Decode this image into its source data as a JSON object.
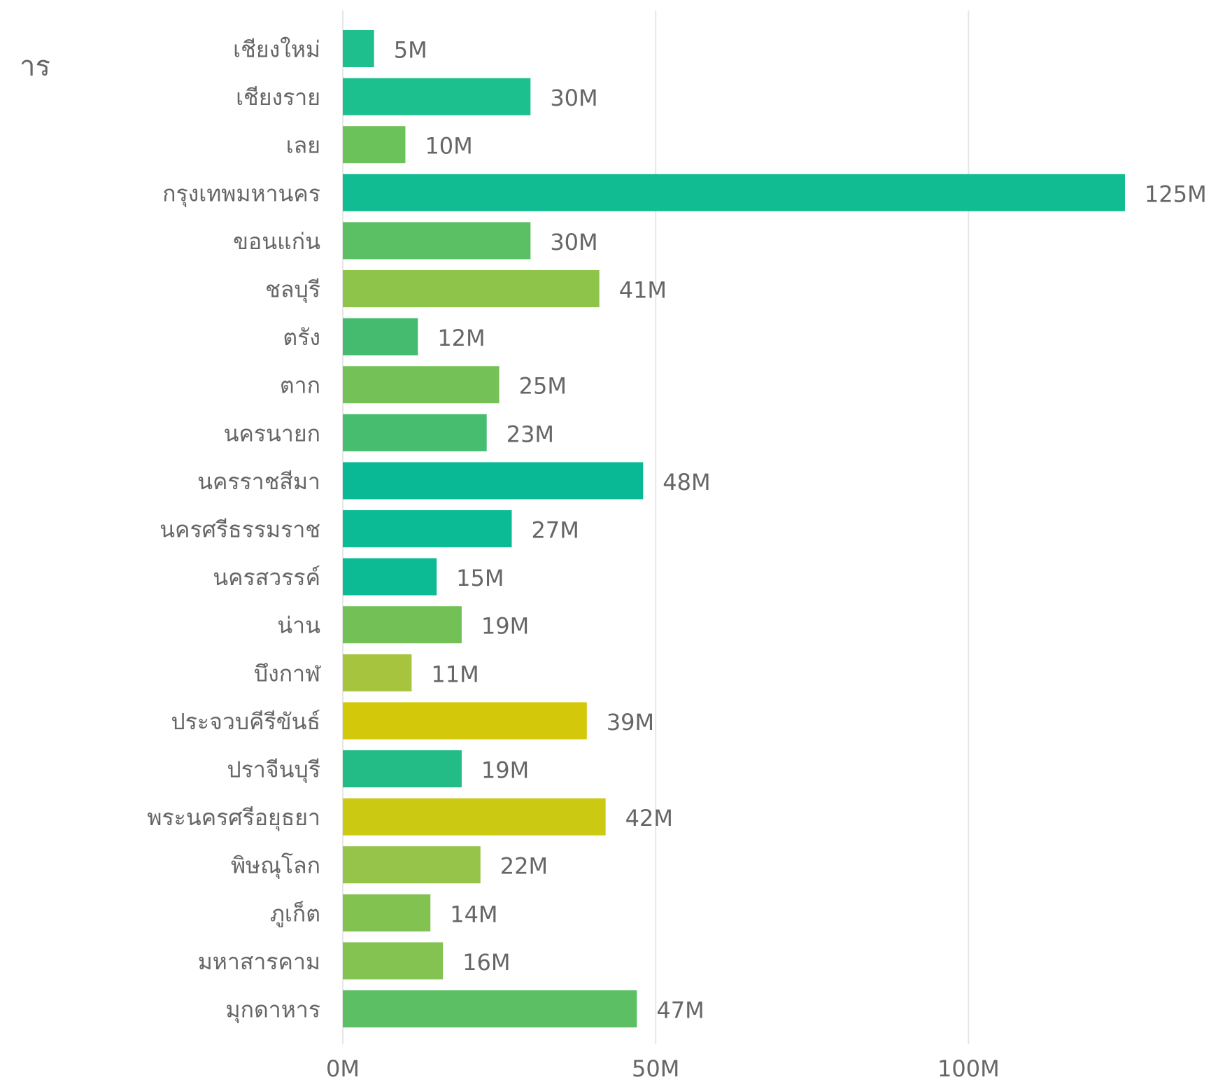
{
  "side_label": "าร",
  "chart_data": {
    "type": "bar",
    "orientation": "horizontal",
    "title": "",
    "xlabel": "",
    "ylabel": "",
    "xlim": [
      0,
      125
    ],
    "x_ticks": [
      0,
      50,
      100
    ],
    "x_tick_labels": [
      "0M",
      "50M",
      "100M"
    ],
    "grid": true,
    "categories": [
      "เชียงใหม่",
      "เชียงราย",
      "เลย",
      "กรุงเทพมหานคร",
      "ขอนแก่น",
      "ชลบุรี",
      "ตรัง",
      "ตาก",
      "นครนายก",
      "นครราชสีมา",
      "นครศรีธรรมราช",
      "นครสวรรค์",
      "น่าน",
      "บึงกาฬ",
      "ประจวบคีรีขันธ์",
      "ปราจีนบุรี",
      "พระนครศรีอยุธยา",
      "พิษณุโลก",
      "ภูเก็ต",
      "มหาสารคาม",
      "มุกดาหาร"
    ],
    "values": [
      5,
      30,
      10,
      125,
      30,
      41,
      12,
      25,
      23,
      48,
      27,
      15,
      19,
      11,
      39,
      19,
      42,
      22,
      14,
      16,
      47
    ],
    "value_labels": [
      "5M",
      "30M",
      "10M",
      "125M",
      "30M",
      "41M",
      "12M",
      "25M",
      "23M",
      "48M",
      "27M",
      "15M",
      "19M",
      "11M",
      "39M",
      "19M",
      "42M",
      "22M",
      "14M",
      "16M",
      "47M"
    ],
    "bar_colors": [
      "#1ebf8c",
      "#1cbf8e",
      "#6cc25a",
      "#11bc92",
      "#5bbf63",
      "#8fc44b",
      "#44bb6e",
      "#74c157",
      "#46bd6f",
      "#09b996",
      "#0bbb95",
      "#0cba93",
      "#72c056",
      "#a7c43e",
      "#d4c80a",
      "#24bc86",
      "#ccc912",
      "#96c44a",
      "#82c251",
      "#84c252",
      "#5cbf64"
    ],
    "gridline_color": "#e6e6e6",
    "label_color": "#666666"
  }
}
